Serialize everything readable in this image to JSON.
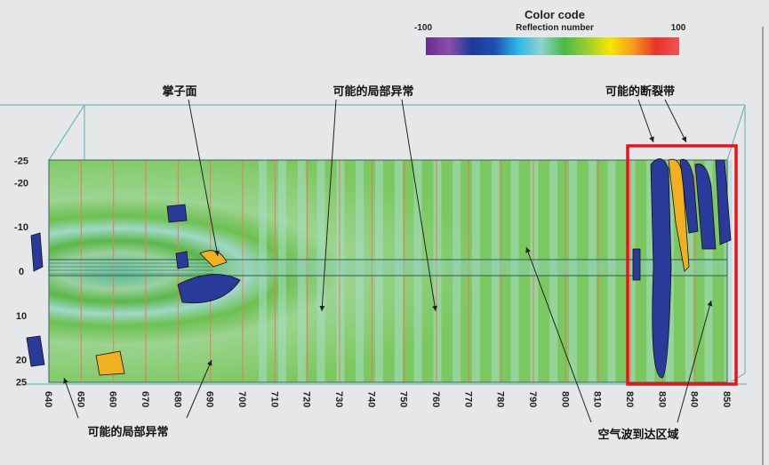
{
  "color_code": {
    "title": "Color code",
    "subtitle": "Reflection number",
    "min_label": "-100",
    "max_label": "100",
    "colors": [
      "#6a2a8e",
      "#8b4fa8",
      "#1a3a9a",
      "#1f4fb0",
      "#2ab8e8",
      "#8fd3d0",
      "#4cb848",
      "#9acd32",
      "#f7e600",
      "#f79a1e",
      "#e8322a",
      "#ee5555"
    ]
  },
  "axes": {
    "x_ticks": [
      "640",
      "650",
      "660",
      "670",
      "680",
      "690",
      "700",
      "710",
      "720",
      "730",
      "740",
      "750",
      "760",
      "770",
      "780",
      "790",
      "800",
      "810",
      "820",
      "830",
      "840",
      "850"
    ],
    "y_ticks": [
      "-25",
      "-20",
      "-10",
      "0",
      "10",
      "20",
      "25"
    ]
  },
  "annotations": {
    "tunnel_face": "掌子面",
    "possible_local_anomaly_top": "可能的局部异常",
    "possible_fault_zone": "可能的断裂带",
    "possible_local_anomaly_bottom": "可能的局部异常",
    "air_wave_arrival_zone": "空气波到达区域"
  },
  "colors": {
    "highlight_box": "#e8141c",
    "grid_lines": "#e87a5a",
    "frame": "#6fb8b8"
  }
}
